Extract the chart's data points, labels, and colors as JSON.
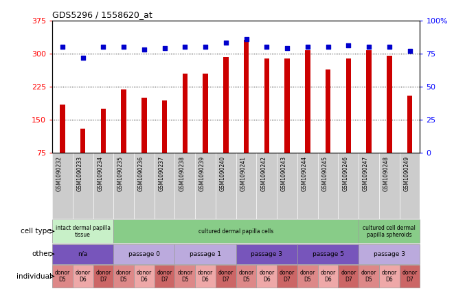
{
  "title": "GDS5296 / 1558620_at",
  "samples": [
    "GSM1090232",
    "GSM1090233",
    "GSM1090234",
    "GSM1090235",
    "GSM1090236",
    "GSM1090237",
    "GSM1090238",
    "GSM1090239",
    "GSM1090240",
    "GSM1090241",
    "GSM1090242",
    "GSM1090243",
    "GSM1090244",
    "GSM1090245",
    "GSM1090246",
    "GSM1090247",
    "GSM1090248",
    "GSM1090249"
  ],
  "counts": [
    185,
    130,
    175,
    218,
    200,
    193,
    255,
    255,
    292,
    330,
    288,
    288,
    308,
    263,
    288,
    308,
    295,
    205
  ],
  "percentiles": [
    80,
    72,
    80,
    80,
    78,
    79,
    80,
    80,
    83,
    86,
    80,
    79,
    80,
    80,
    81,
    80,
    80,
    77
  ],
  "ylim_left": [
    75,
    375
  ],
  "ylim_right": [
    0,
    100
  ],
  "yticks_left": [
    75,
    150,
    225,
    300,
    375
  ],
  "yticks_right": [
    0,
    25,
    50,
    75,
    100
  ],
  "bar_color": "#cc0000",
  "dot_color": "#0000cc",
  "bar_bottom": 75,
  "bar_width": 0.25,
  "cell_type_groups": [
    {
      "label": "intact dermal papilla\ntissue",
      "start": 0,
      "end": 3,
      "color": "#c8f0c8"
    },
    {
      "label": "cultured dermal papilla cells",
      "start": 3,
      "end": 15,
      "color": "#88cc88"
    },
    {
      "label": "cultured cell dermal\npapilla spheroids",
      "start": 15,
      "end": 18,
      "color": "#88cc88"
    }
  ],
  "other_groups": [
    {
      "label": "n/a",
      "start": 0,
      "end": 3,
      "color": "#7755bb"
    },
    {
      "label": "passage 0",
      "start": 3,
      "end": 6,
      "color": "#bbaadd"
    },
    {
      "label": "passage 1",
      "start": 6,
      "end": 9,
      "color": "#bbaadd"
    },
    {
      "label": "passage 3",
      "start": 9,
      "end": 12,
      "color": "#7755bb"
    },
    {
      "label": "passage 5",
      "start": 12,
      "end": 15,
      "color": "#7755bb"
    },
    {
      "label": "passage 3",
      "start": 15,
      "end": 18,
      "color": "#bbaadd"
    }
  ],
  "individual_groups": [
    {
      "label": "donor\nD5",
      "start": 0,
      "end": 1,
      "color": "#dd8888"
    },
    {
      "label": "donor\nD6",
      "start": 1,
      "end": 2,
      "color": "#eea8a8"
    },
    {
      "label": "donor\nD7",
      "start": 2,
      "end": 3,
      "color": "#cc6666"
    },
    {
      "label": "donor\nD5",
      "start": 3,
      "end": 4,
      "color": "#dd8888"
    },
    {
      "label": "donor\nD6",
      "start": 4,
      "end": 5,
      "color": "#eea8a8"
    },
    {
      "label": "donor\nD7",
      "start": 5,
      "end": 6,
      "color": "#cc6666"
    },
    {
      "label": "donor\nD5",
      "start": 6,
      "end": 7,
      "color": "#dd8888"
    },
    {
      "label": "donor\nD6",
      "start": 7,
      "end": 8,
      "color": "#eea8a8"
    },
    {
      "label": "donor\nD7",
      "start": 8,
      "end": 9,
      "color": "#cc6666"
    },
    {
      "label": "donor\nD5",
      "start": 9,
      "end": 10,
      "color": "#dd8888"
    },
    {
      "label": "donor\nD6",
      "start": 10,
      "end": 11,
      "color": "#eea8a8"
    },
    {
      "label": "donor\nD7",
      "start": 11,
      "end": 12,
      "color": "#cc6666"
    },
    {
      "label": "donor\nD5",
      "start": 12,
      "end": 13,
      "color": "#dd8888"
    },
    {
      "label": "donor\nD6",
      "start": 13,
      "end": 14,
      "color": "#eea8a8"
    },
    {
      "label": "donor\nD7",
      "start": 14,
      "end": 15,
      "color": "#cc6666"
    },
    {
      "label": "donor\nD5",
      "start": 15,
      "end": 16,
      "color": "#dd8888"
    },
    {
      "label": "donor\nD6",
      "start": 16,
      "end": 17,
      "color": "#eea8a8"
    },
    {
      "label": "donor\nD7",
      "start": 17,
      "end": 18,
      "color": "#cc6666"
    }
  ],
  "row_labels": [
    "cell type",
    "other",
    "individual"
  ],
  "background_color": "#ffffff",
  "xticklabel_bg": "#cccccc",
  "legend_count_color": "#cc0000",
  "legend_pct_color": "#0000cc"
}
